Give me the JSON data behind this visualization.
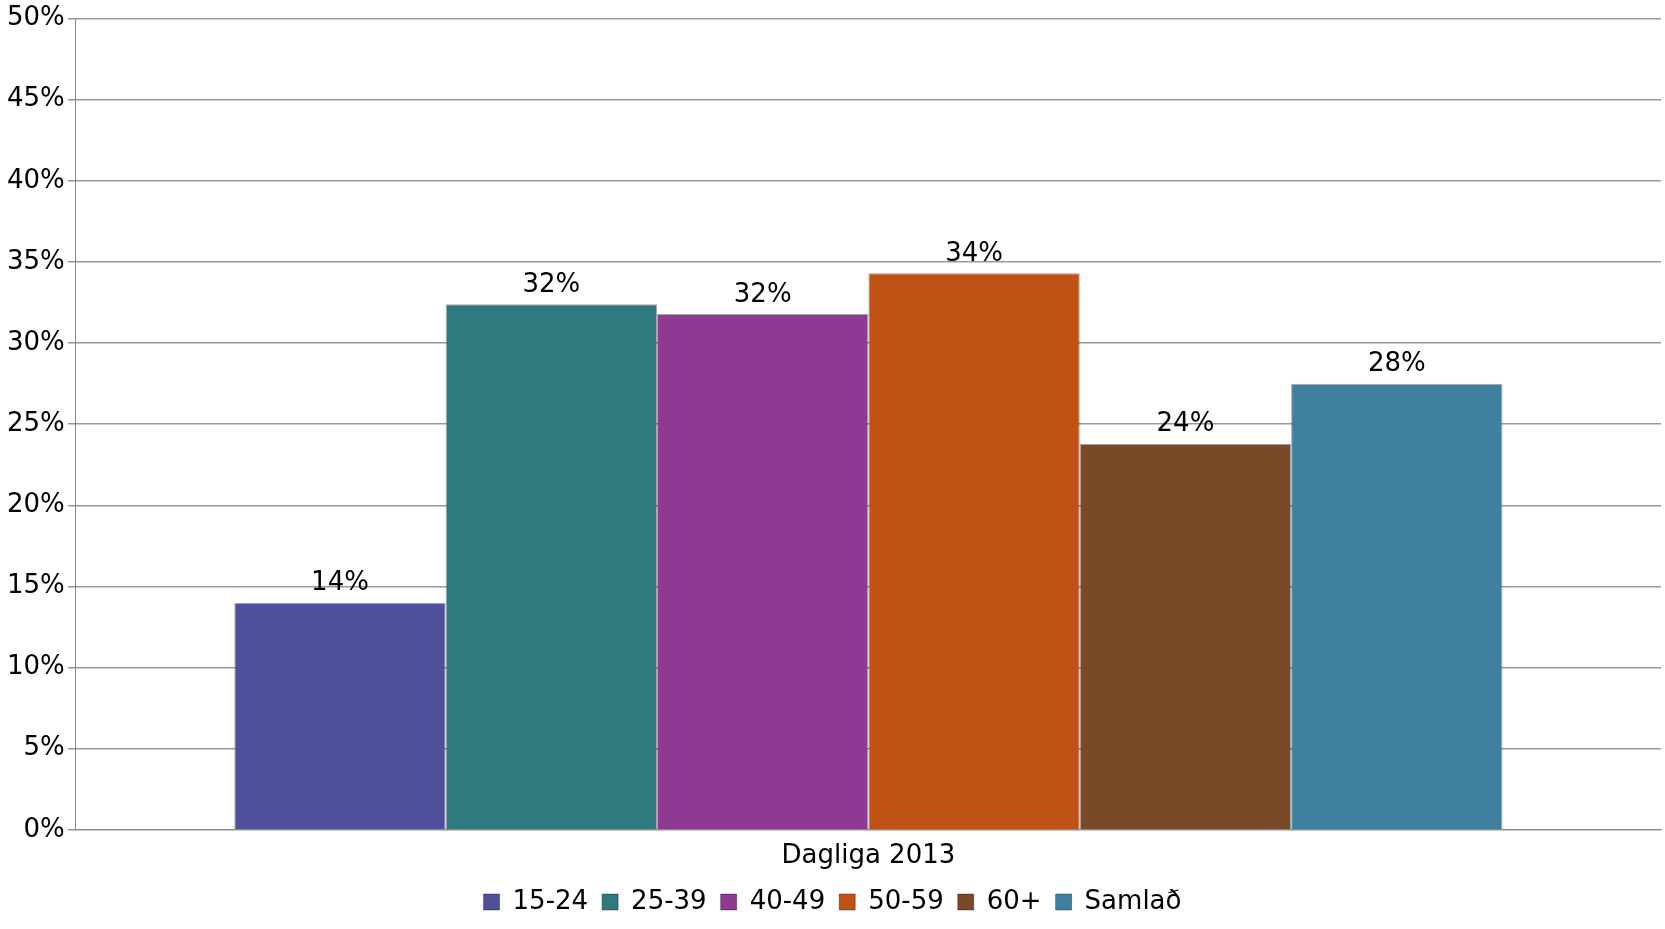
{
  "chart_data": {
    "type": "bar",
    "categories": [
      "Dagliga 2013"
    ],
    "series": [
      {
        "name": "15-24",
        "color": "#4f4f9a",
        "values": [
          14
        ],
        "value_labels": [
          "14%"
        ]
      },
      {
        "name": "25-39",
        "color": "#2f7a7e",
        "values": [
          32.4
        ],
        "value_labels": [
          "32%"
        ]
      },
      {
        "name": "40-49",
        "color": "#8e3a95",
        "values": [
          31.8
        ],
        "value_labels": [
          "32%"
        ]
      },
      {
        "name": "50-59",
        "color": "#c05215",
        "values": [
          34.3
        ],
        "value_labels": [
          "34%"
        ]
      },
      {
        "name": "60+",
        "color": "#7a4a28",
        "values": [
          23.8
        ],
        "value_labels": [
          "24%"
        ]
      },
      {
        "name": "Samlað",
        "color": "#40809f",
        "values": [
          27.5
        ],
        "value_labels": [
          "28%"
        ]
      }
    ],
    "ylim": [
      0,
      50
    ],
    "yticks": [
      {
        "value": 0,
        "label": "0%"
      },
      {
        "value": 5,
        "label": "5%"
      },
      {
        "value": 10,
        "label": "10%"
      },
      {
        "value": 15,
        "label": "15%"
      },
      {
        "value": 20,
        "label": "20%"
      },
      {
        "value": 25,
        "label": "25%"
      },
      {
        "value": 30,
        "label": "30%"
      },
      {
        "value": 35,
        "label": "35%"
      },
      {
        "value": 40,
        "label": "40%"
      },
      {
        "value": 45,
        "label": "45%"
      },
      {
        "value": 50,
        "label": "50%"
      }
    ],
    "grid": "y",
    "legend": "bottom"
  }
}
